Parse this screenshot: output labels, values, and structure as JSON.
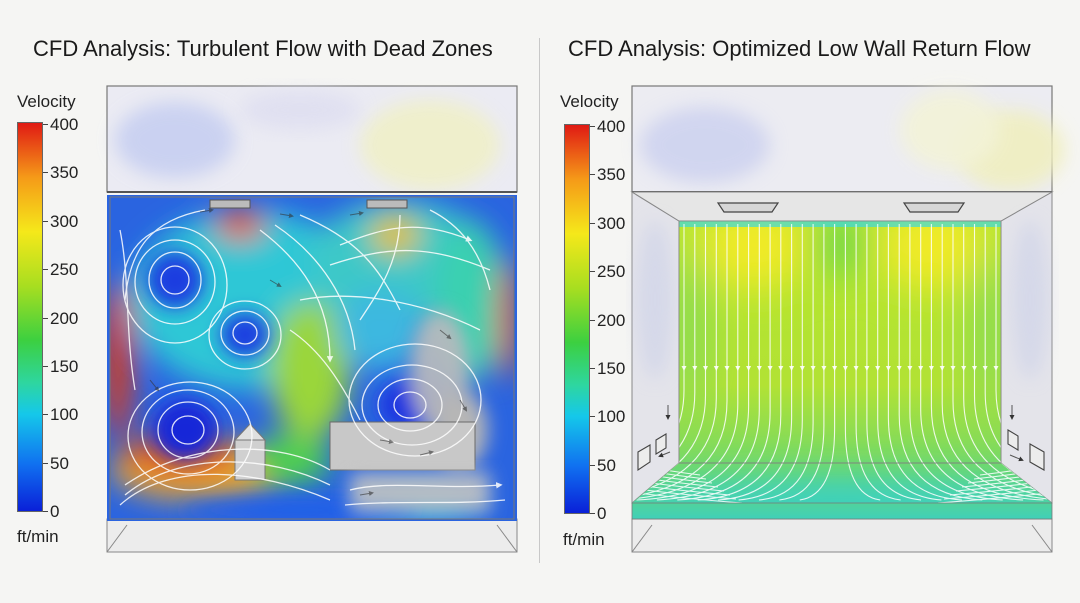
{
  "left_panel": {
    "title": "CFD Analysis: Turbulent Flow with Dead Zones",
    "legend": {
      "title": "Velocity",
      "unit": "ft/min",
      "ticks": [
        "400",
        "350",
        "300",
        "250",
        "200",
        "150",
        "100",
        "50",
        "0"
      ]
    }
  },
  "right_panel": {
    "title": "CFD Analysis: Optimized Low Wall Return Flow",
    "legend": {
      "title": "Velocity",
      "unit": "ft/min",
      "ticks": [
        "400",
        "350",
        "300",
        "250",
        "200",
        "150",
        "100",
        "50",
        "0"
      ]
    }
  },
  "colors": {
    "low": "#0a20d8",
    "mid_low": "#15c8ea",
    "mid": "#3cd040",
    "mid_high": "#f5e81a",
    "high": "#e01a14",
    "stagnant": "#b4b4b4"
  }
}
